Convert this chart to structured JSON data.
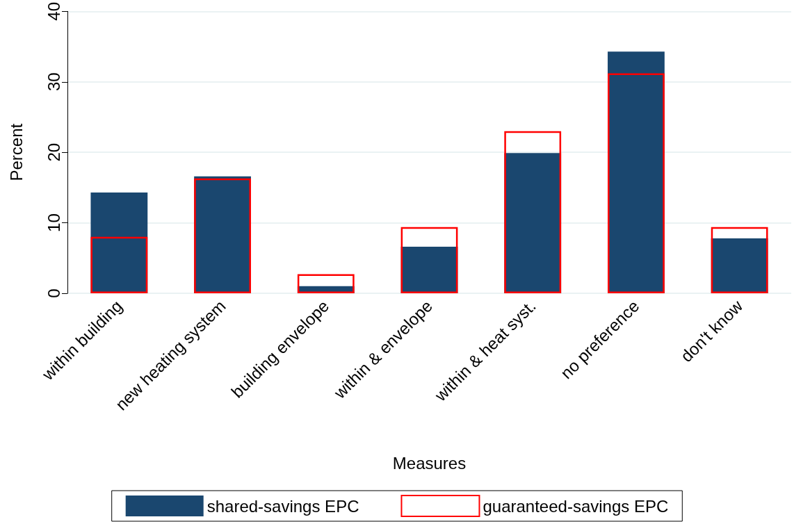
{
  "chart_data": {
    "type": "bar",
    "xlabel": "Measures",
    "ylabel": "Percent",
    "categories": [
      "within building",
      "new heating system",
      "building envelope",
      "within & envelope",
      "within & heat syst.",
      "no preference",
      "don't know"
    ],
    "series": [
      {
        "name": "shared-savings EPC",
        "color": "#1a476f",
        "values": [
          14.3,
          16.6,
          1.0,
          6.6,
          19.9,
          34.3,
          7.8
        ]
      },
      {
        "name": "guaranteed-savings EPC",
        "color": "#ff0000",
        "values": [
          8.0,
          16.3,
          2.7,
          9.4,
          23.0,
          31.2,
          9.4
        ]
      }
    ],
    "ylim": [
      0,
      40
    ],
    "yticks": [
      0,
      10,
      20,
      30,
      40
    ],
    "grid": "y",
    "legend": "bottom"
  }
}
